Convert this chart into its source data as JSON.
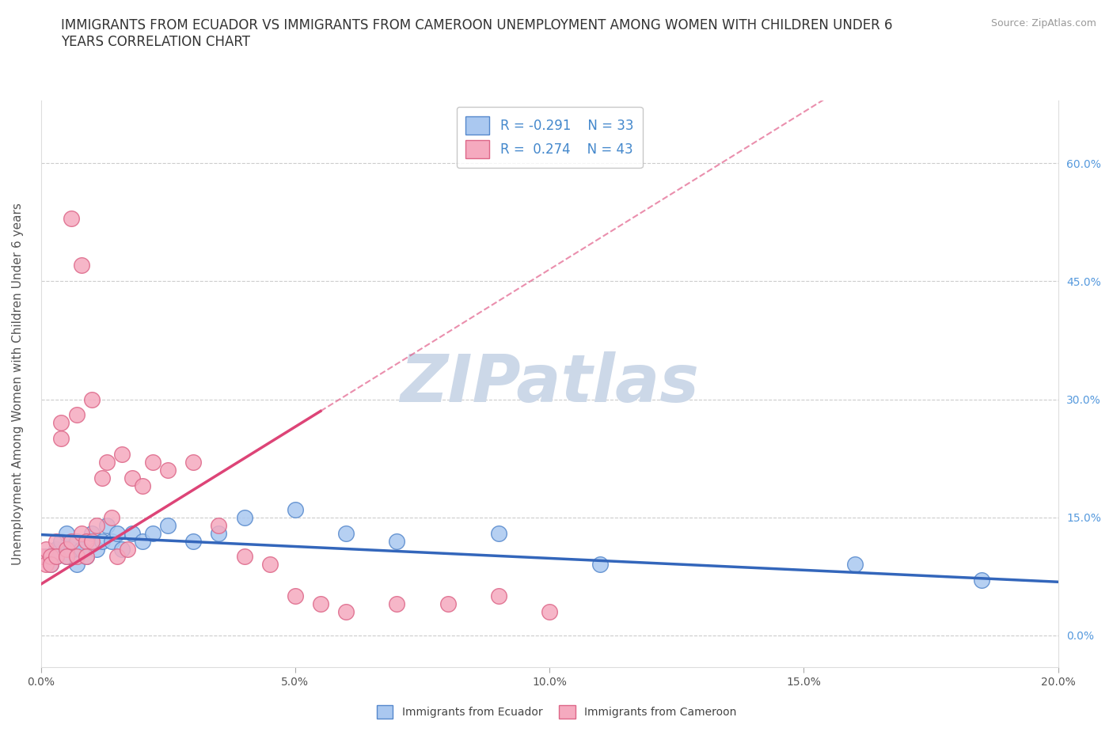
{
  "title": "IMMIGRANTS FROM ECUADOR VS IMMIGRANTS FROM CAMEROON UNEMPLOYMENT AMONG WOMEN WITH CHILDREN UNDER 6\nYEARS CORRELATION CHART",
  "source_text": "Source: ZipAtlas.com",
  "ylabel": "Unemployment Among Women with Children Under 6 years",
  "xlim": [
    0.0,
    0.2
  ],
  "ylim": [
    -0.04,
    0.68
  ],
  "xticks": [
    0.0,
    0.05,
    0.1,
    0.15,
    0.2
  ],
  "xticklabels": [
    "0.0%",
    "5.0%",
    "10.0%",
    "15.0%",
    "20.0%"
  ],
  "yticks_right": [
    0.0,
    0.15,
    0.3,
    0.45,
    0.6
  ],
  "yticklabels_right": [
    "0.0%",
    "15.0%",
    "30.0%",
    "45.0%",
    "60.0%"
  ],
  "ecuador_color": "#aac8f0",
  "cameroon_color": "#f5aabf",
  "ecuador_edge": "#5588cc",
  "cameroon_edge": "#dd6688",
  "trendline_ecuador_color": "#3366bb",
  "trendline_cameroon_color": "#dd4477",
  "watermark_color": "#ccd8e8",
  "grid_color": "#cccccc",
  "title_color": "#333333",
  "source_color": "#999999",
  "right_tick_color": "#5599dd",
  "legend_text_color": "#4488cc",
  "ecuador_x": [
    0.001,
    0.002,
    0.003,
    0.003,
    0.004,
    0.005,
    0.005,
    0.006,
    0.007,
    0.007,
    0.008,
    0.009,
    0.01,
    0.011,
    0.012,
    0.013,
    0.014,
    0.015,
    0.016,
    0.018,
    0.02,
    0.022,
    0.025,
    0.03,
    0.035,
    0.04,
    0.05,
    0.06,
    0.07,
    0.09,
    0.11,
    0.16,
    0.185
  ],
  "ecuador_y": [
    0.1,
    0.09,
    0.11,
    0.1,
    0.12,
    0.1,
    0.13,
    0.11,
    0.09,
    0.12,
    0.11,
    0.1,
    0.13,
    0.11,
    0.12,
    0.14,
    0.12,
    0.13,
    0.11,
    0.13,
    0.12,
    0.13,
    0.14,
    0.12,
    0.13,
    0.15,
    0.16,
    0.13,
    0.12,
    0.13,
    0.09,
    0.09,
    0.07
  ],
  "cameroon_x": [
    0.0,
    0.001,
    0.001,
    0.002,
    0.002,
    0.003,
    0.003,
    0.004,
    0.004,
    0.005,
    0.005,
    0.006,
    0.006,
    0.007,
    0.007,
    0.008,
    0.008,
    0.009,
    0.009,
    0.01,
    0.01,
    0.011,
    0.012,
    0.013,
    0.014,
    0.015,
    0.016,
    0.017,
    0.018,
    0.02,
    0.022,
    0.025,
    0.03,
    0.035,
    0.04,
    0.045,
    0.05,
    0.055,
    0.06,
    0.07,
    0.08,
    0.09,
    0.1
  ],
  "cameroon_y": [
    0.1,
    0.09,
    0.11,
    0.1,
    0.09,
    0.12,
    0.1,
    0.25,
    0.27,
    0.11,
    0.1,
    0.12,
    0.53,
    0.28,
    0.1,
    0.13,
    0.47,
    0.12,
    0.1,
    0.12,
    0.3,
    0.14,
    0.2,
    0.22,
    0.15,
    0.1,
    0.23,
    0.11,
    0.2,
    0.19,
    0.22,
    0.21,
    0.22,
    0.14,
    0.1,
    0.09,
    0.05,
    0.04,
    0.03,
    0.04,
    0.04,
    0.05,
    0.03
  ],
  "title_fontsize": 12,
  "axis_label_fontsize": 11,
  "tick_fontsize": 10,
  "legend_fontsize": 12,
  "source_fontsize": 9
}
